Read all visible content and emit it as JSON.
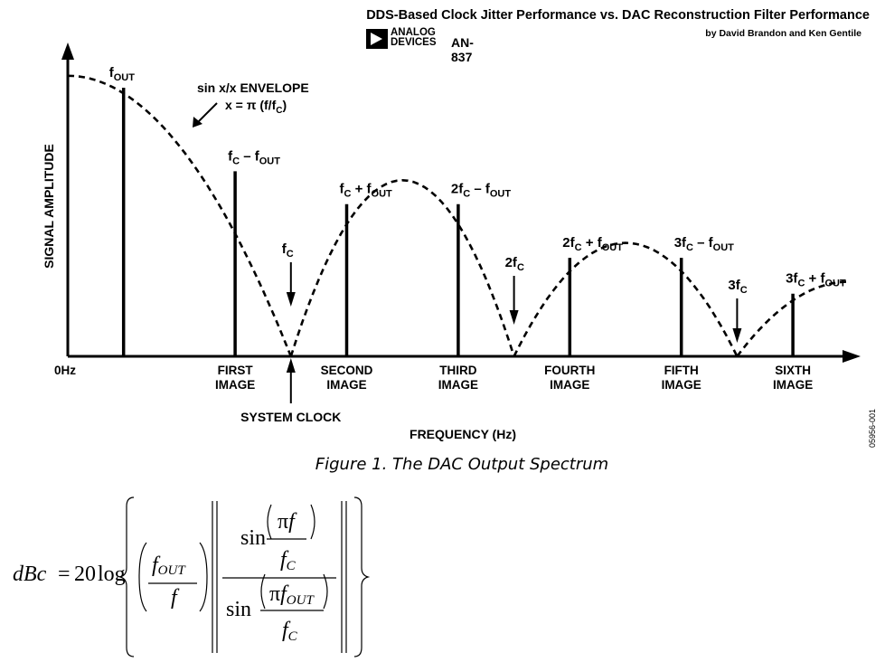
{
  "header": {
    "title": "DDS-Based Clock Jitter Performance vs. DAC Reconstruction Filter Performance",
    "author": "by David Brandon and Ken Gentile",
    "logo_line1": "ANALOG",
    "logo_line2": "DEVICES",
    "doc_id": "AN-837"
  },
  "chart_data": {
    "type": "spectrum",
    "ylabel": "SIGNAL AMPLITUDE",
    "xlabel": "FREQUENCY (Hz)",
    "origin_label": "0Hz",
    "envelope_label_line1": "sin x/x ENVELOPE",
    "envelope_label_line2": "x = π (f/f",
    "envelope_label_line2_sub": "C",
    "envelope_label_line2_end": ")",
    "system_clock_label": "SYSTEM CLOCK",
    "x_units": "multiples of f_C",
    "lines": [
      {
        "x": 0.5,
        "amplitude": 0.9,
        "label": "f",
        "sub": "OUT",
        "category": []
      },
      {
        "x": 1.5,
        "amplitude": 0.62,
        "label": "f",
        "sub": "C",
        "mid": " – f",
        "sub2": "OUT",
        "category": [
          "FIRST",
          "IMAGE"
        ]
      },
      {
        "x": 2.5,
        "amplitude": 0.51,
        "label": "f",
        "sub": "C",
        "mid": " + f",
        "sub2": "OUT",
        "category": [
          "SECOND",
          "IMAGE"
        ]
      },
      {
        "x": 3.5,
        "amplitude": 0.51,
        "label": "2f",
        "sub": "C",
        "mid": " – f",
        "sub2": "OUT",
        "category": [
          "THIRD",
          "IMAGE"
        ]
      },
      {
        "x": 4.5,
        "amplitude": 0.33,
        "label": "2f",
        "sub": "C",
        "mid": " + f",
        "sub2": "OUT",
        "category": [
          "FOURTH",
          "IMAGE"
        ]
      },
      {
        "x": 5.5,
        "amplitude": 0.33,
        "label": "3f",
        "sub": "C",
        "mid": " – f",
        "sub2": "OUT",
        "category": [
          "FIFTH",
          "IMAGE"
        ]
      },
      {
        "x": 6.5,
        "amplitude": 0.21,
        "label": "3f",
        "sub": "C",
        "mid": " + f",
        "sub2": "OUT",
        "category": [
          "SIXTH",
          "IMAGE"
        ]
      }
    ],
    "nulls": [
      {
        "x": 2,
        "label": "f",
        "sub": "C"
      },
      {
        "x": 4,
        "label": "2f",
        "sub": "C"
      },
      {
        "x": 6,
        "label": "3f",
        "sub": "C"
      }
    ],
    "envelope_peaks": [
      {
        "x": 0,
        "amplitude": 0.94
      },
      {
        "x": 3,
        "amplitude": 0.59
      },
      {
        "x": 5,
        "amplitude": 0.38
      },
      {
        "x": 7,
        "amplitude": 0.25
      }
    ]
  },
  "caption": "Figure 1. The DAC Output Spectrum",
  "side_id": "05956-001",
  "formula": {
    "lhs": "dBc",
    "equals": "=",
    "coef": "20",
    "log": "log",
    "f": "f",
    "sub_out": "OUT",
    "sub_c": "C",
    "sin": "sin",
    "pi": "π"
  }
}
